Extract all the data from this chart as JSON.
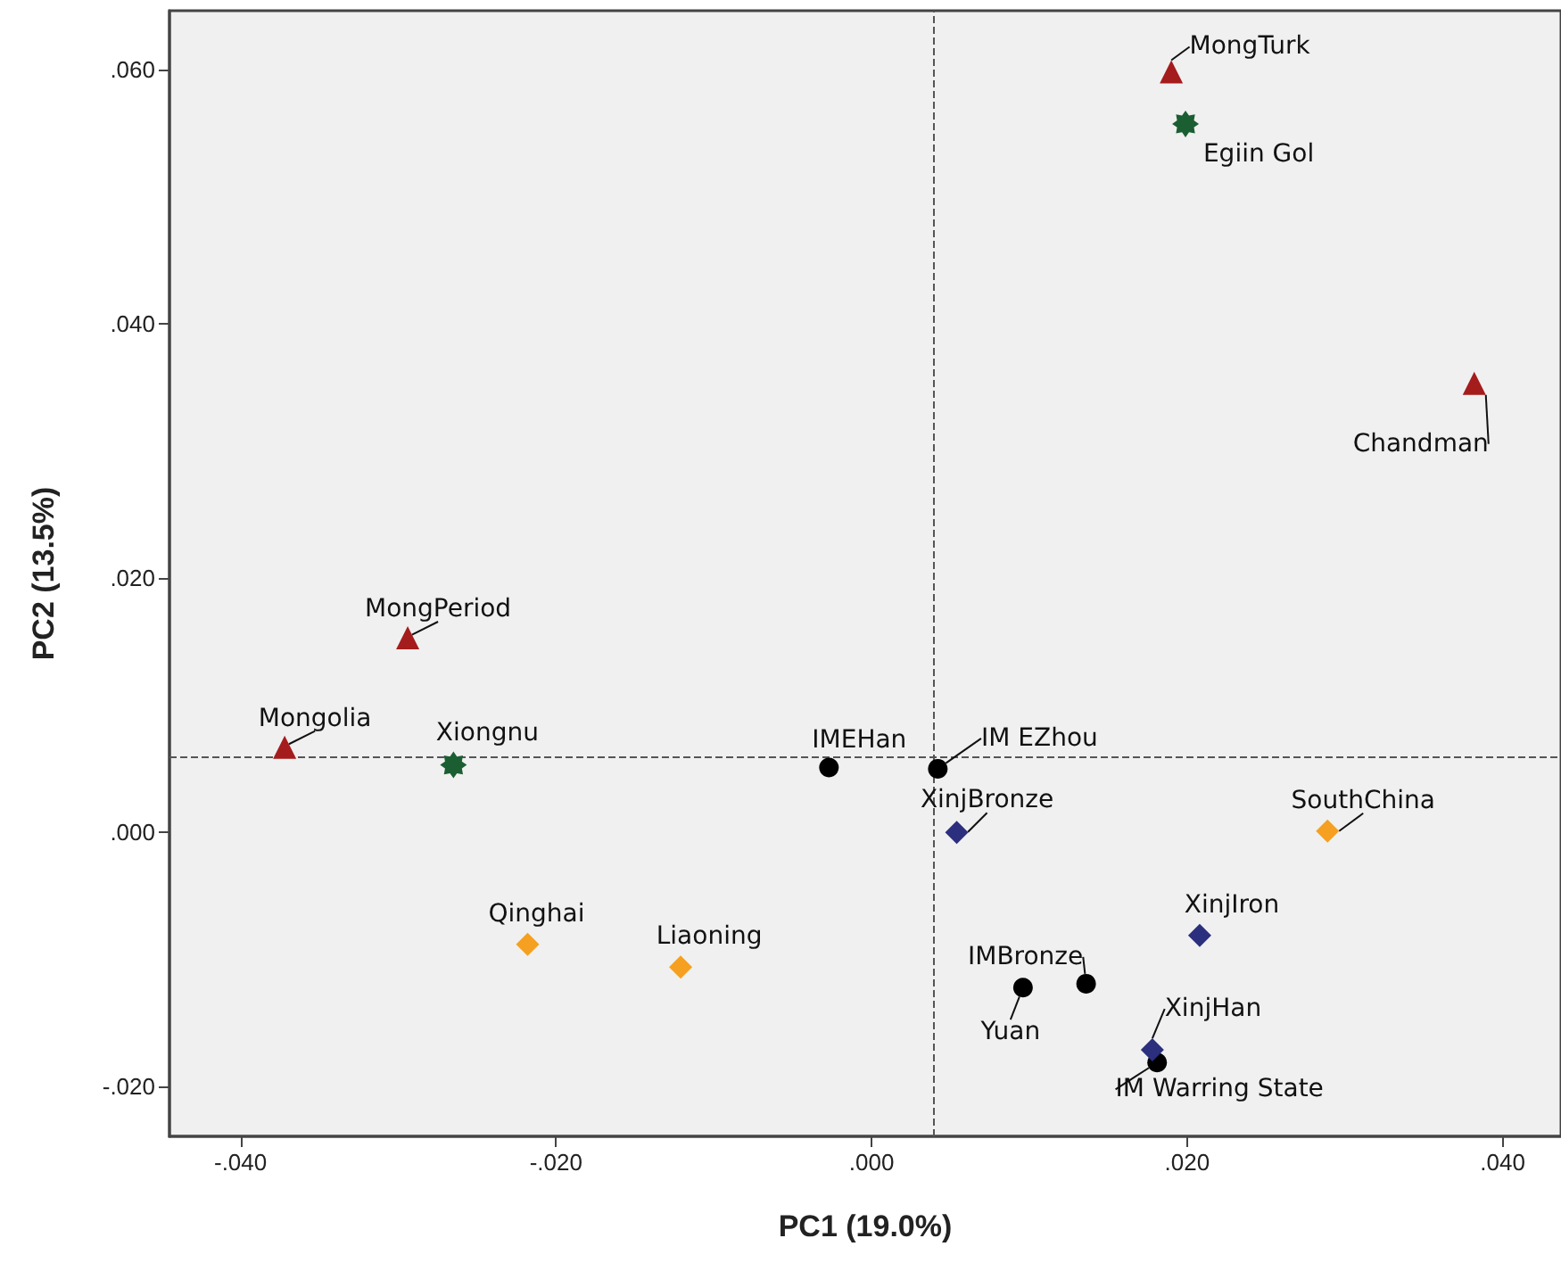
{
  "chart_data": {
    "type": "scatter",
    "xlabel": "PC1 (19.0%)",
    "ylabel": "PC2 (13.5%)",
    "xlim": [
      -0.0445,
      0.0437
    ],
    "ylim": [
      -0.0239,
      0.0646
    ],
    "xticks": [
      {
        "value": -0.04,
        "label": "-.040"
      },
      {
        "value": -0.02,
        "label": "-.020"
      },
      {
        "value": 0,
        "label": ".000"
      },
      {
        "value": 0.02,
        "label": ".020"
      },
      {
        "value": 0.04,
        "label": ".040"
      }
    ],
    "yticks": [
      {
        "value": -0.02,
        "label": "-.020"
      },
      {
        "value": 0,
        "label": ".000"
      },
      {
        "value": 0.02,
        "label": ".020"
      },
      {
        "value": 0.04,
        "label": ".040"
      },
      {
        "value": 0.06,
        "label": ".060"
      }
    ],
    "grid": false,
    "ref_lines": [
      {
        "axis": "x",
        "value": 0.0039,
        "line_style": "dashed",
        "color": "#555555"
      },
      {
        "axis": "y",
        "value": 0.006,
        "line_style": "dashed",
        "color": "#555555"
      }
    ],
    "series": [
      {
        "color": "#a51c1c",
        "marker": "triangle",
        "x": [
          -0.0372,
          -0.0294,
          0.019,
          0.0382
        ],
        "values": [
          0.0067,
          0.0153,
          0.0598,
          0.0353
        ],
        "value_labels": [
          "Mongolia",
          "MongPeriod",
          "MongTurk",
          "Chandman"
        ]
      },
      {
        "color": "#1b5e32",
        "marker": "star",
        "x": [
          -0.0265,
          0.0199
        ],
        "values": [
          0.0053,
          0.0557
        ],
        "value_labels": [
          "Xiongnu",
          "Egiin Gol"
        ]
      },
      {
        "color": "#000000",
        "marker": "circle",
        "x": [
          -0.0027,
          0.0042,
          0.0136,
          0.0096,
          0.0181
        ],
        "values": [
          0.0051,
          0.005,
          -0.0119,
          -0.0122,
          -0.0181
        ],
        "value_labels": [
          "IMEHan",
          "IM EZhou",
          "IMBronze",
          "Yuan",
          "IM Warring State"
        ]
      },
      {
        "color": "#2b2f7e",
        "marker": "diamond",
        "x": [
          0.0054,
          0.0208,
          0.0178
        ],
        "values": [
          0.0,
          -0.0081,
          -0.0171
        ],
        "value_labels": [
          "XinjBronze",
          "XinjIron",
          "XinjHan"
        ]
      },
      {
        "color": "#f5a020",
        "marker": "diamond",
        "x": [
          -0.0218,
          -0.0121,
          0.0289
        ],
        "values": [
          -0.0088,
          -0.0106,
          0.0001
        ],
        "value_labels": [
          "Qinghai",
          "Liaoning",
          "SouthChina"
        ]
      }
    ]
  }
}
